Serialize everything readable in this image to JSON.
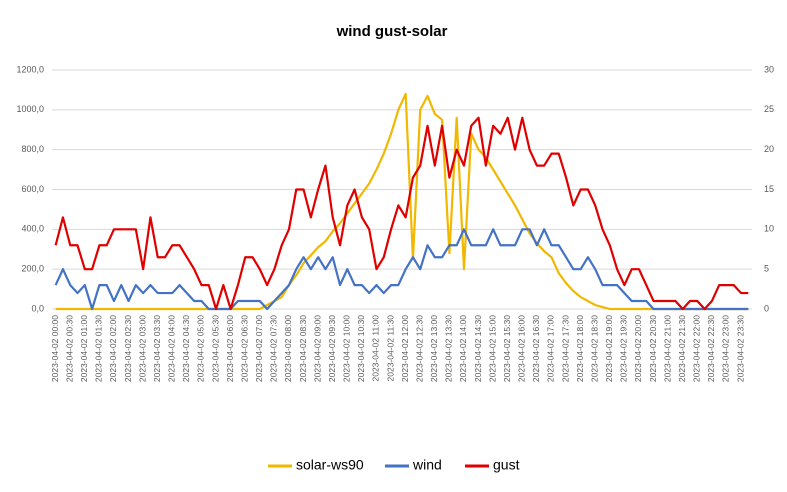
{
  "chart_data": {
    "type": "line",
    "title": "wind gust-solar",
    "categories": [
      "2023-04-02 00:00",
      null,
      "2023-04-02 00:30",
      null,
      "2023-04-02 01:00",
      null,
      "2023-04-02 01:30",
      null,
      "2023-04-02 02:00",
      null,
      "2023-04-02 02:30",
      null,
      "2023-04-02 03:00",
      null,
      "2023-04-02 03:30",
      null,
      "2023-04-02 04:00",
      null,
      "2023-04-02 04:30",
      null,
      "2023-04-02 05:00",
      null,
      "2023-04-02 05:30",
      null,
      "2023-04-02 06:00",
      null,
      "2023-04-02 06:30",
      null,
      "2023-04-02 07:00",
      null,
      "2023-04-02 07:30",
      null,
      "2023-04-02 08:00",
      null,
      "2023-04-02 08:30",
      null,
      "2023-04-02 09:00",
      null,
      "2023-04-02 09:30",
      null,
      "2023-04-02 10:00",
      null,
      "2023-04-02 10:30",
      null,
      "2023-04-02 11:00",
      null,
      "2023-04-02 11:30",
      null,
      "2023-04-02 12:00",
      null,
      "2023-04-02 12:30",
      null,
      "2023-04-02 13:00",
      null,
      "2023-04-02 13:30",
      null,
      "2023-04-02 14:00",
      null,
      "2023-04-02 14:30",
      null,
      "2023-04-02 15:00",
      null,
      "2023-04-02 15:30",
      null,
      "2023-04-02 16:00",
      null,
      "2023-04-02 16:30",
      null,
      "2023-04-02 17:00",
      null,
      "2023-04-02 17:30",
      null,
      "2023-04-02 18:00",
      null,
      "2023-04-02 18:30",
      null,
      "2023-04-02 19:00",
      null,
      "2023-04-02 19:30",
      null,
      "2023-04-02 20:00",
      null,
      "2023-04-02 20:30",
      null,
      "2023-04-02 21:00",
      null,
      "2023-04-02 21:30",
      null,
      "2023-04-02 22:00",
      null,
      "2023-04-02 22:30",
      null,
      "2023-04-02 23:00",
      null,
      "2023-04-02 23:30",
      null
    ],
    "series": [
      {
        "name": "solar-ws90",
        "color": "#f0b800",
        "axis": "y",
        "values": [
          0,
          0,
          0,
          0,
          0,
          0,
          0,
          0,
          0,
          0,
          0,
          0,
          0,
          0,
          0,
          0,
          0,
          0,
          0,
          0,
          0,
          0,
          0,
          0,
          0,
          0,
          0,
          0,
          0,
          20,
          40,
          60,
          120,
          170,
          230,
          270,
          310,
          340,
          390,
          430,
          480,
          530,
          580,
          630,
          700,
          780,
          880,
          1000,
          1080,
          250,
          1000,
          1070,
          980,
          950,
          280,
          960,
          200,
          880,
          800,
          760,
          700,
          640,
          580,
          520,
          450,
          380,
          330,
          290,
          260,
          180,
          130,
          90,
          60,
          40,
          20,
          10,
          0,
          0,
          0,
          0,
          0,
          0,
          0,
          0,
          0,
          0,
          0,
          0,
          0,
          0,
          0,
          0,
          0,
          0,
          0,
          0
        ]
      },
      {
        "name": "wind",
        "color": "#4472c4",
        "axis": "y2",
        "values": [
          3,
          5,
          3,
          2,
          3,
          0,
          3,
          3,
          1,
          3,
          1,
          3,
          2,
          3,
          2,
          2,
          2,
          3,
          2,
          1,
          1,
          0,
          0,
          0,
          0,
          1,
          1,
          1,
          1,
          0,
          1,
          2,
          3,
          5,
          6.5,
          5,
          6.5,
          5,
          6.5,
          3,
          5,
          3,
          3,
          2,
          3,
          2,
          3,
          3,
          5,
          6.5,
          5,
          8,
          6.5,
          6.5,
          8,
          8,
          10,
          8,
          8,
          8,
          10,
          8,
          8,
          8,
          10,
          10,
          8,
          10,
          8,
          8,
          6.5,
          5,
          5,
          6.5,
          5,
          3,
          3,
          3,
          2,
          1,
          1,
          1,
          0,
          0,
          0,
          0,
          0,
          0,
          0,
          0,
          0,
          0,
          0,
          0,
          0,
          0
        ]
      },
      {
        "name": "gust",
        "color": "#e00000",
        "axis": "y2",
        "values": [
          8,
          11.5,
          8,
          8,
          5,
          5,
          8,
          8,
          10,
          10,
          10,
          10,
          5,
          11.5,
          6.5,
          6.5,
          8,
          8,
          6.5,
          5,
          3,
          3,
          0,
          3,
          0,
          3,
          6.5,
          6.5,
          5,
          3,
          5,
          8,
          10,
          15,
          15,
          11.5,
          15,
          18,
          11.5,
          8,
          13,
          15,
          11.5,
          10,
          5,
          6.5,
          10,
          13,
          11.5,
          16.5,
          18,
          23,
          18,
          23,
          16.5,
          20,
          18,
          23,
          24,
          18,
          23,
          22,
          24,
          20,
          24,
          20,
          18,
          18,
          19.5,
          19.5,
          16.5,
          13,
          15,
          15,
          13,
          10,
          8,
          5,
          3,
          5,
          5,
          3,
          1,
          1,
          1,
          1,
          0,
          1,
          1,
          0,
          1,
          3,
          3,
          3,
          2,
          2
        ]
      }
    ],
    "ylim": [
      0,
      1200
    ],
    "yticks": [
      {
        "value": 0,
        "label": "0,0"
      },
      {
        "value": 200,
        "label": "200,0"
      },
      {
        "value": 400,
        "label": "400,0"
      },
      {
        "value": 600,
        "label": "600,0"
      },
      {
        "value": 800,
        "label": "800,0"
      },
      {
        "value": 1000,
        "label": "1000,0"
      },
      {
        "value": 1200,
        "label": "1200,0"
      }
    ],
    "y2lim": [
      0,
      30
    ],
    "y2ticks": [
      0,
      5,
      10,
      15,
      20,
      25,
      30
    ],
    "grid": true,
    "legend": "bottom"
  }
}
